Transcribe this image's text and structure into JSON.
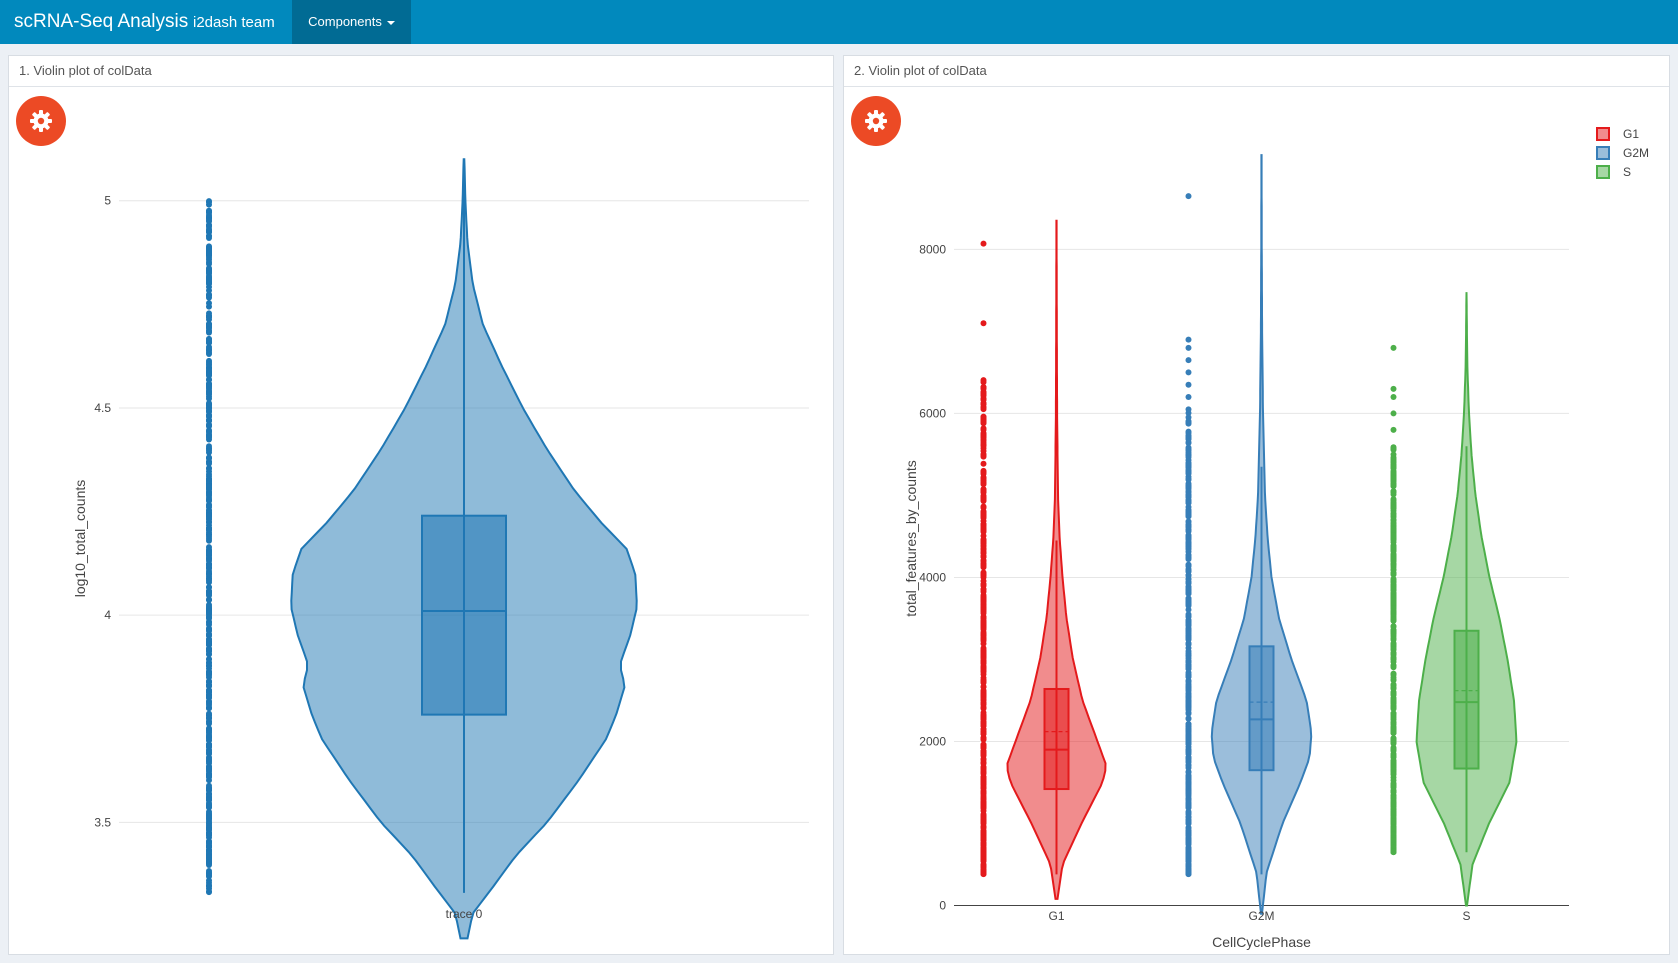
{
  "nav": {
    "brand": "scRNA-Seq Analysis",
    "team": "i2dash team",
    "menu": "Components"
  },
  "panels": [
    {
      "title": "1. Violin plot of colData"
    },
    {
      "title": "2. Violin plot of colData"
    }
  ],
  "icons": {
    "settings": "gear-icon",
    "menu_caret": "caret-down-icon"
  },
  "colors": {
    "navbar": "#0189bd",
    "menu_active": "#016b94",
    "settings_button": "#ec4a25",
    "trace0": "#1f77b4",
    "G1": "#e41a1c",
    "G2M": "#377eb8",
    "S": "#4daf4a"
  },
  "chart_data": [
    {
      "type": "violin",
      "title": "",
      "xlabel": "",
      "ylabel": "log10_total_counts",
      "ylim": [
        3.25,
        5.12
      ],
      "yticks": [
        "3.5",
        "4",
        "4.5",
        "5"
      ],
      "grid": true,
      "categories": [
        "trace 0"
      ],
      "series": [
        {
          "category": "trace 0",
          "color": "#1f77b4",
          "box": {
            "q1": 3.76,
            "median": 4.01,
            "q3": 4.24,
            "mean": 4.01
          },
          "whisker": [
            3.33,
            5.1
          ],
          "kde_range": [
            3.22,
            5.1
          ],
          "outlier_range": [
            3.33,
            5.0
          ],
          "density": [
            [
              3.22,
              0.02
            ],
            [
              3.28,
              0.05
            ],
            [
              3.34,
              0.16
            ],
            [
              3.42,
              0.3
            ],
            [
              3.5,
              0.48
            ],
            [
              3.6,
              0.66
            ],
            [
              3.7,
              0.82
            ],
            [
              3.76,
              0.88
            ],
            [
              3.83,
              0.93
            ],
            [
              3.88,
              0.9
            ],
            [
              3.95,
              0.96
            ],
            [
              4.02,
              1.0
            ],
            [
              4.1,
              0.99
            ],
            [
              4.16,
              0.94
            ],
            [
              4.22,
              0.8
            ],
            [
              4.3,
              0.64
            ],
            [
              4.4,
              0.48
            ],
            [
              4.5,
              0.34
            ],
            [
              4.6,
              0.22
            ],
            [
              4.7,
              0.11
            ],
            [
              4.8,
              0.05
            ],
            [
              4.9,
              0.02
            ],
            [
              5.0,
              0.008
            ],
            [
              5.1,
              0.002
            ]
          ]
        }
      ]
    },
    {
      "type": "violin",
      "title": "",
      "xlabel": "CellCyclePhase",
      "ylabel": "total_features_by_counts",
      "ylim": [
        -250,
        9200
      ],
      "yticks": [
        "0",
        "2000",
        "4000",
        "6000",
        "8000"
      ],
      "grid": true,
      "legend": {
        "position": "top-right",
        "entries": [
          "G1",
          "G2M",
          "S"
        ]
      },
      "categories": [
        "G1",
        "G2M",
        "S"
      ],
      "series": [
        {
          "name": "G1",
          "color": "#e41a1c",
          "box": {
            "q1": 1420,
            "median": 1900,
            "q3": 2640,
            "mean": 2120
          },
          "whisker": [
            380,
            4450
          ],
          "kde_range": [
            80,
            8350
          ],
          "outlier_range": [
            380,
            6420
          ],
          "extra_outliers": [
            7100,
            8070
          ],
          "density": [
            [
              80,
              0.02
            ],
            [
              500,
              0.12
            ],
            [
              1000,
              0.5
            ],
            [
              1500,
              0.92
            ],
            [
              1700,
              1.0
            ],
            [
              2000,
              0.82
            ],
            [
              2500,
              0.52
            ],
            [
              3000,
              0.33
            ],
            [
              3500,
              0.2
            ],
            [
              4000,
              0.12
            ],
            [
              4500,
              0.06
            ],
            [
              5000,
              0.03
            ],
            [
              6000,
              0.012
            ],
            [
              7000,
              0.006
            ],
            [
              8350,
              0.001
            ]
          ]
        },
        {
          "name": "G2M",
          "color": "#377eb8",
          "box": {
            "q1": 1650,
            "median": 2270,
            "q3": 3160,
            "mean": 2480
          },
          "whisker": [
            380,
            5350
          ],
          "kde_range": [
            -100,
            9150
          ],
          "outlier_range": [
            380,
            6050
          ],
          "extra_outliers": [
            6200,
            6350,
            6500,
            6650,
            6800,
            6900,
            8650
          ],
          "density": [
            [
              -100,
              0.01
            ],
            [
              400,
              0.1
            ],
            [
              1000,
              0.42
            ],
            [
              1500,
              0.78
            ],
            [
              1800,
              0.96
            ],
            [
              2100,
              1.0
            ],
            [
              2500,
              0.9
            ],
            [
              3000,
              0.6
            ],
            [
              3500,
              0.35
            ],
            [
              4000,
              0.2
            ],
            [
              4500,
              0.12
            ],
            [
              5000,
              0.07
            ],
            [
              6000,
              0.03
            ],
            [
              7000,
              0.012
            ],
            [
              8000,
              0.005
            ],
            [
              9150,
              0.001
            ]
          ]
        },
        {
          "name": "S",
          "color": "#4daf4a",
          "box": {
            "q1": 1670,
            "median": 2480,
            "q3": 3350,
            "mean": 2620
          },
          "whisker": [
            650,
            5600
          ],
          "kde_range": [
            0,
            7480
          ],
          "outlier_range": [
            650,
            5600
          ],
          "extra_outliers": [
            5800,
            6000,
            6200,
            6300,
            6800
          ],
          "density": [
            [
              0,
              0.01
            ],
            [
              500,
              0.12
            ],
            [
              1000,
              0.45
            ],
            [
              1500,
              0.86
            ],
            [
              2000,
              1.0
            ],
            [
              2500,
              0.95
            ],
            [
              3000,
              0.82
            ],
            [
              3500,
              0.66
            ],
            [
              4000,
              0.46
            ],
            [
              4500,
              0.3
            ],
            [
              5000,
              0.18
            ],
            [
              5500,
              0.1
            ],
            [
              6000,
              0.05
            ],
            [
              6500,
              0.02
            ],
            [
              7000,
              0.008
            ],
            [
              7480,
              0.001
            ]
          ]
        }
      ]
    }
  ]
}
